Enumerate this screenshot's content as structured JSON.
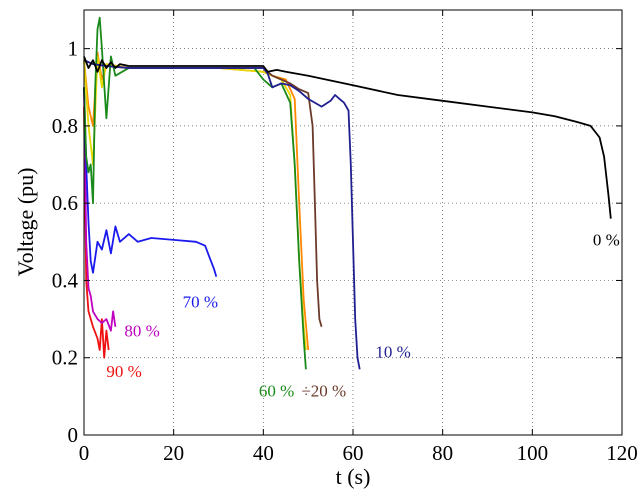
{
  "chart_data": {
    "type": "line",
    "xlabel": "t (s)",
    "ylabel": "Voltage (pu)",
    "xlim": [
      0,
      120
    ],
    "ylim": [
      0,
      1.1
    ],
    "xticks": [
      "0",
      "20",
      "40",
      "60",
      "80",
      "100",
      "120"
    ],
    "yticks": [
      "0",
      "0.2",
      "0.4",
      "0.6",
      "0.8",
      "1"
    ],
    "grid": true,
    "series": [
      {
        "label": "0 %",
        "color": "#000000",
        "points": [
          [
            0,
            0.98
          ],
          [
            1,
            0.95
          ],
          [
            2,
            0.97
          ],
          [
            3,
            0.94
          ],
          [
            4,
            0.97
          ],
          [
            5,
            0.95
          ],
          [
            6,
            0.965
          ],
          [
            7,
            0.95
          ],
          [
            8,
            0.96
          ],
          [
            10,
            0.955
          ],
          [
            15,
            0.955
          ],
          [
            20,
            0.955
          ],
          [
            30,
            0.955
          ],
          [
            40,
            0.955
          ],
          [
            41,
            0.94
          ],
          [
            43,
            0.945
          ],
          [
            45,
            0.94
          ],
          [
            50,
            0.93
          ],
          [
            60,
            0.905
          ],
          [
            70,
            0.88
          ],
          [
            80,
            0.865
          ],
          [
            90,
            0.85
          ],
          [
            100,
            0.835
          ],
          [
            105,
            0.825
          ],
          [
            110,
            0.81
          ],
          [
            113,
            0.8
          ],
          [
            115,
            0.77
          ],
          [
            116,
            0.72
          ],
          [
            117,
            0.62
          ],
          [
            117.5,
            0.56
          ]
        ]
      },
      {
        "label": "10 %",
        "color": "#1f1f8f",
        "points": [
          [
            0,
            0.97
          ],
          [
            2,
            0.96
          ],
          [
            5,
            0.955
          ],
          [
            10,
            0.95
          ],
          [
            20,
            0.95
          ],
          [
            30,
            0.95
          ],
          [
            40,
            0.95
          ],
          [
            41,
            0.935
          ],
          [
            42,
            0.9
          ],
          [
            44,
            0.91
          ],
          [
            46,
            0.905
          ],
          [
            48,
            0.89
          ],
          [
            50,
            0.87
          ],
          [
            53,
            0.85
          ],
          [
            55,
            0.865
          ],
          [
            56,
            0.88
          ],
          [
            57,
            0.87
          ],
          [
            58,
            0.86
          ],
          [
            59,
            0.84
          ],
          [
            59.5,
            0.7
          ],
          [
            60,
            0.5
          ],
          [
            60.5,
            0.3
          ],
          [
            61,
            0.2
          ],
          [
            61.5,
            0.17
          ]
        ]
      },
      {
        "label": "20 %",
        "color": "#6b3a2a",
        "points": [
          [
            0,
            0.97
          ],
          [
            2,
            0.96
          ],
          [
            5,
            0.955
          ],
          [
            10,
            0.95
          ],
          [
            20,
            0.95
          ],
          [
            30,
            0.95
          ],
          [
            40,
            0.95
          ],
          [
            42,
            0.93
          ],
          [
            44,
            0.92
          ],
          [
            46,
            0.91
          ],
          [
            48,
            0.895
          ],
          [
            50,
            0.885
          ],
          [
            51,
            0.8
          ],
          [
            51.5,
            0.6
          ],
          [
            52,
            0.4
          ],
          [
            52.5,
            0.3
          ],
          [
            53,
            0.28
          ]
        ]
      },
      {
        "label": "60 %",
        "color": "#1a8a1a",
        "points": [
          [
            0,
            0.9
          ],
          [
            0.5,
            0.72
          ],
          [
            1,
            0.68
          ],
          [
            1.5,
            0.7
          ],
          [
            2,
            0.6
          ],
          [
            2.5,
            0.9
          ],
          [
            3,
            1.05
          ],
          [
            3.5,
            1.08
          ],
          [
            4,
            1.0
          ],
          [
            5,
            0.82
          ],
          [
            6,
            0.98
          ],
          [
            7,
            0.93
          ],
          [
            10,
            0.95
          ],
          [
            20,
            0.95
          ],
          [
            30,
            0.95
          ],
          [
            38,
            0.95
          ],
          [
            40,
            0.92
          ],
          [
            42,
            0.9
          ],
          [
            44,
            0.91
          ],
          [
            46,
            0.86
          ],
          [
            47,
            0.7
          ],
          [
            48,
            0.45
          ],
          [
            49,
            0.25
          ],
          [
            49.5,
            0.17
          ]
        ]
      },
      {
        "label": "70 %",
        "color": "#1a1aee",
        "points": [
          [
            0,
            0.9
          ],
          [
            0.5,
            0.7
          ],
          [
            1,
            0.55
          ],
          [
            1.5,
            0.45
          ],
          [
            2,
            0.42
          ],
          [
            3,
            0.5
          ],
          [
            4,
            0.48
          ],
          [
            5,
            0.53
          ],
          [
            6,
            0.47
          ],
          [
            7,
            0.54
          ],
          [
            8,
            0.5
          ],
          [
            10,
            0.52
          ],
          [
            12,
            0.5
          ],
          [
            15,
            0.51
          ],
          [
            20,
            0.505
          ],
          [
            25,
            0.5
          ],
          [
            27,
            0.49
          ],
          [
            28,
            0.46
          ],
          [
            29,
            0.43
          ],
          [
            29.5,
            0.41
          ]
        ]
      },
      {
        "label": "80 %",
        "color": "#c000c0",
        "points": [
          [
            0,
            0.9
          ],
          [
            0.5,
            0.5
          ],
          [
            1,
            0.38
          ],
          [
            1.5,
            0.36
          ],
          [
            2,
            0.32
          ],
          [
            3,
            0.3
          ],
          [
            4,
            0.29
          ],
          [
            5,
            0.3
          ],
          [
            6,
            0.27
          ],
          [
            6.5,
            0.32
          ],
          [
            7,
            0.28
          ]
        ]
      },
      {
        "label": "90 %",
        "color": "#ee1111",
        "points": [
          [
            0,
            0.85
          ],
          [
            0.5,
            0.4
          ],
          [
            1,
            0.32
          ],
          [
            2,
            0.28
          ],
          [
            3,
            0.25
          ],
          [
            3.5,
            0.22
          ],
          [
            4,
            0.3
          ],
          [
            4.5,
            0.2
          ],
          [
            5,
            0.27
          ],
          [
            5.5,
            0.22
          ]
        ]
      },
      {
        "label": "",
        "color": "#e6d800",
        "points": [
          [
            0,
            0.97
          ],
          [
            1,
            0.8
          ],
          [
            2,
            0.7
          ],
          [
            3,
            0.98
          ],
          [
            4,
            0.9
          ],
          [
            5,
            0.96
          ],
          [
            10,
            0.95
          ],
          [
            20,
            0.95
          ],
          [
            30,
            0.95
          ],
          [
            40,
            0.94
          ],
          [
            42,
            0.93
          ],
          [
            44,
            0.92
          ],
          [
            46,
            0.88
          ],
          [
            47,
            0.7
          ],
          [
            48,
            0.45
          ],
          [
            49,
            0.28
          ],
          [
            49.5,
            0.22
          ]
        ]
      },
      {
        "label": "",
        "color": "#ff8800",
        "points": [
          [
            0,
            0.97
          ],
          [
            1,
            0.85
          ],
          [
            2,
            0.8
          ],
          [
            3,
            0.99
          ],
          [
            4,
            0.92
          ],
          [
            5,
            0.96
          ],
          [
            10,
            0.95
          ],
          [
            20,
            0.95
          ],
          [
            30,
            0.95
          ],
          [
            40,
            0.94
          ],
          [
            42,
            0.93
          ],
          [
            45,
            0.92
          ],
          [
            47,
            0.87
          ],
          [
            48,
            0.6
          ],
          [
            49,
            0.35
          ],
          [
            50,
            0.22
          ]
        ]
      }
    ],
    "annotations": [
      {
        "text": "0 %",
        "x": 113.5,
        "y": 0.49,
        "color": "#000000"
      },
      {
        "text": "10 %",
        "x": 65,
        "y": 0.2,
        "color": "#1f1f8f"
      },
      {
        "text": "70 %",
        "x": 22,
        "y": 0.33,
        "color": "#1a1aee"
      },
      {
        "text": "80 %",
        "x": 9,
        "y": 0.255,
        "color": "#c000c0"
      },
      {
        "text": "90 %",
        "x": 5,
        "y": 0.15,
        "color": "#ee1111"
      },
      {
        "text": "60 %",
        "x": 39,
        "y": 0.1,
        "color": "#1a8a1a"
      },
      {
        "text": "÷20 %",
        "x": 48.5,
        "y": 0.1,
        "color": "#6b3a2a"
      }
    ]
  }
}
